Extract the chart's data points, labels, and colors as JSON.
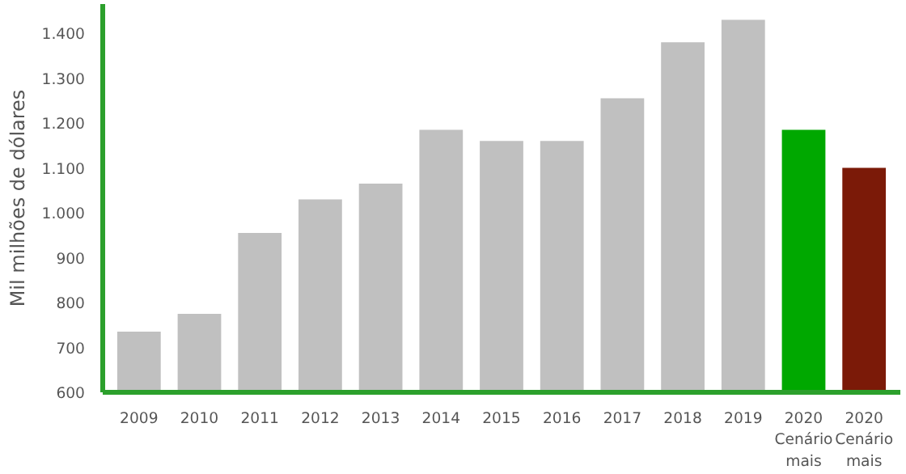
{
  "chart_data": {
    "type": "bar",
    "ylabel": "Mil milhões de dólares",
    "categories": [
      "2009",
      "2010",
      "2011",
      "2012",
      "2013",
      "2014",
      "2015",
      "2016",
      "2017",
      "2018",
      "2019",
      "2020\nCenário\nmais",
      "2020\nCenário\nmais"
    ],
    "values": [
      735,
      775,
      955,
      1030,
      1065,
      1185,
      1160,
      1160,
      1255,
      1380,
      1430,
      1185,
      1100
    ],
    "colors": [
      "#c0c0c0",
      "#c0c0c0",
      "#c0c0c0",
      "#c0c0c0",
      "#c0c0c0",
      "#c0c0c0",
      "#c0c0c0",
      "#c0c0c0",
      "#c0c0c0",
      "#c0c0c0",
      "#c0c0c0",
      "#00a800",
      "#7b1a08"
    ],
    "ylim": [
      600,
      1465
    ],
    "yticks": [
      600,
      700,
      800,
      900,
      {
        "value": 1000,
        "label": "1.000"
      },
      {
        "value": 1100,
        "label": "1.100"
      },
      {
        "value": 1200,
        "label": "1.200"
      },
      {
        "value": 1300,
        "label": "1.300"
      },
      {
        "value": 1400,
        "label": "1.400"
      }
    ],
    "grid": false
  }
}
